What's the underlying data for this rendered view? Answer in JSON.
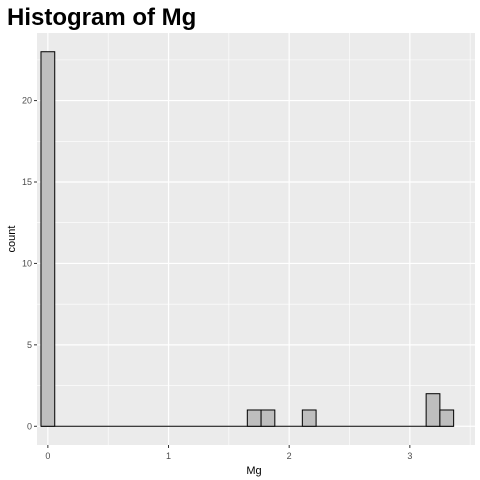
{
  "chart_data": {
    "type": "bar",
    "title": "Histogram of Mg",
    "xlabel": "Mg",
    "ylabel": "count",
    "xlim": [
      -0.09,
      3.54
    ],
    "ylim": [
      -1.15,
      24.15
    ],
    "x_ticks": [
      0,
      1,
      2,
      3
    ],
    "y_ticks": [
      0,
      5,
      10,
      15,
      20
    ],
    "bin_width": 0.114,
    "bins": [
      {
        "center": 0.0,
        "count": 23
      },
      {
        "center": 1.71,
        "count": 1
      },
      {
        "center": 1.824,
        "count": 1
      },
      {
        "center": 2.166,
        "count": 1
      },
      {
        "center": 3.192,
        "count": 2
      },
      {
        "center": 3.306,
        "count": 1
      }
    ],
    "bar_fill": "#bebebe",
    "bar_stroke": "#000000",
    "panel_background": "#ebebeb",
    "grid_color": "#ffffff",
    "grid": true
  }
}
